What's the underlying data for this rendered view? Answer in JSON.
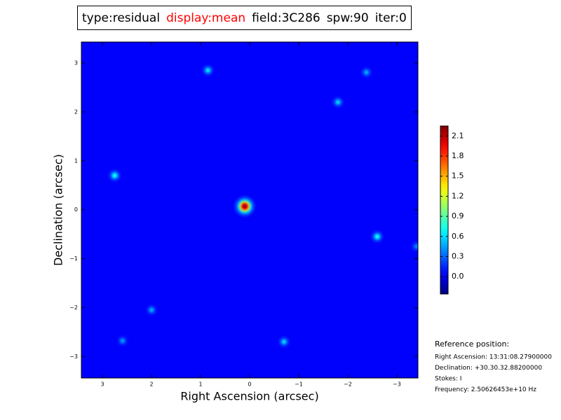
{
  "chart_data": {
    "type": "image",
    "header": [
      {
        "text": "type:residual",
        "color": "#000000"
      },
      {
        "text": "display:mean",
        "color": "#ff0000"
      },
      {
        "text": "field:3C286",
        "color": "#000000"
      },
      {
        "text": "spw:90",
        "color": "#000000"
      },
      {
        "text": "iter:0",
        "color": "#000000"
      }
    ],
    "x_label": "Right Ascension (arcsec)",
    "y_label": "Declination (arcsec)",
    "xlim": [
      3.43,
      -3.43
    ],
    "ylim": [
      -3.44,
      3.43
    ],
    "xticks": [
      3,
      2,
      1,
      0,
      {
        "value": -1,
        "label": "−1"
      },
      {
        "value": -2,
        "label": "−2"
      },
      {
        "value": -3,
        "label": "−3"
      }
    ],
    "yticks": [
      3,
      2,
      1,
      0,
      {
        "value": -1,
        "label": "−1"
      },
      {
        "value": -2,
        "label": "−2"
      },
      {
        "value": -3,
        "label": "−3"
      }
    ],
    "colormap": "jet",
    "clim": [
      -0.26,
      2.25
    ],
    "cticks": [
      {
        "value": 0,
        "label": "0.0"
      },
      0.3,
      0.6,
      0.9,
      1.2,
      1.5,
      1.8,
      2.1
    ],
    "background": 0.05,
    "sources": [
      {
        "x": 0.1,
        "y": 0.07,
        "value": 2.2
      },
      {
        "x": 2.75,
        "y": 0.7,
        "value": 0.75
      },
      {
        "x": 0.85,
        "y": 2.85,
        "value": 0.65
      },
      {
        "x": -1.8,
        "y": 2.2,
        "value": 0.6
      },
      {
        "x": -2.6,
        "y": -0.55,
        "value": 0.75
      },
      {
        "x": -0.7,
        "y": -2.7,
        "value": 0.6
      },
      {
        "x": 2.0,
        "y": -2.05,
        "value": 0.5
      },
      {
        "x": -2.38,
        "y": 2.81,
        "value": 0.5
      },
      {
        "x": 2.59,
        "y": -2.68,
        "value": 0.45
      },
      {
        "x": -3.4,
        "y": -0.75,
        "value": 0.4
      }
    ],
    "info_title": "Reference position:",
    "info": [
      "Right Ascension: 13:31:08.27900000",
      "Declination: +30.30.32.88200000",
      "Stokes: I",
      "Frequency: 2.50626453e+10 Hz"
    ]
  }
}
